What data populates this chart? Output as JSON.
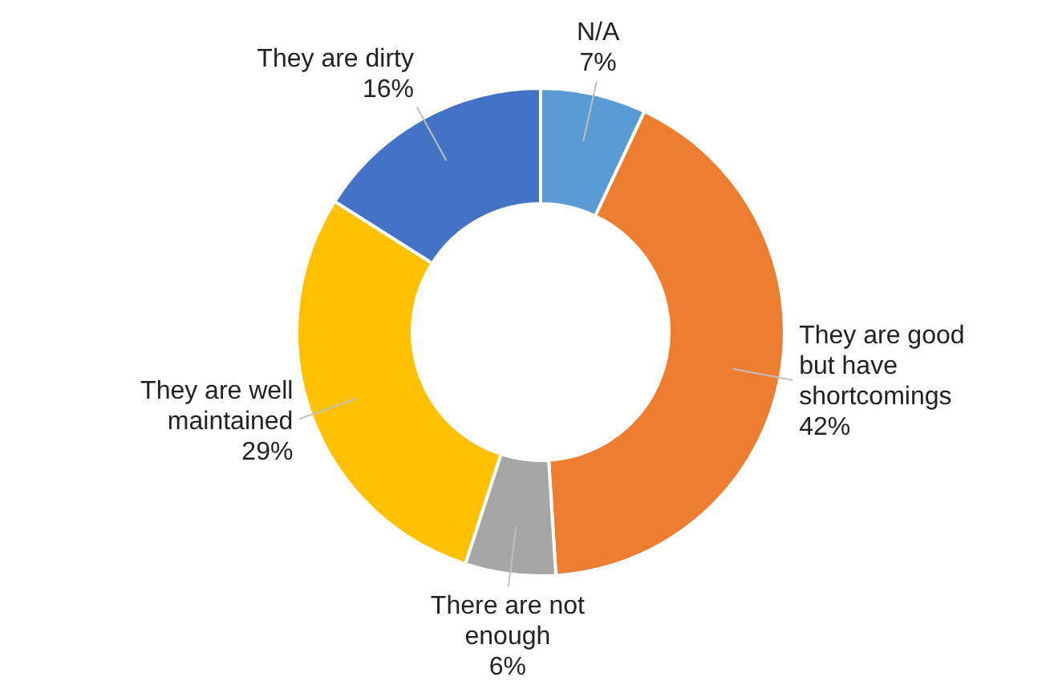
{
  "chart_data": {
    "type": "donut",
    "categories": [
      "N/A",
      "They are good but have shortcomings",
      "There are not enough",
      "They are well maintained",
      "They are dirty"
    ],
    "values": [
      7,
      42,
      6,
      29,
      16
    ],
    "value_labels": [
      "7%",
      "42%",
      "6%",
      "29%",
      "16%"
    ],
    "colors": [
      "#5b9bd5",
      "#ed7d31",
      "#a5a5a5",
      "#ffc000",
      "#4472c4"
    ]
  }
}
